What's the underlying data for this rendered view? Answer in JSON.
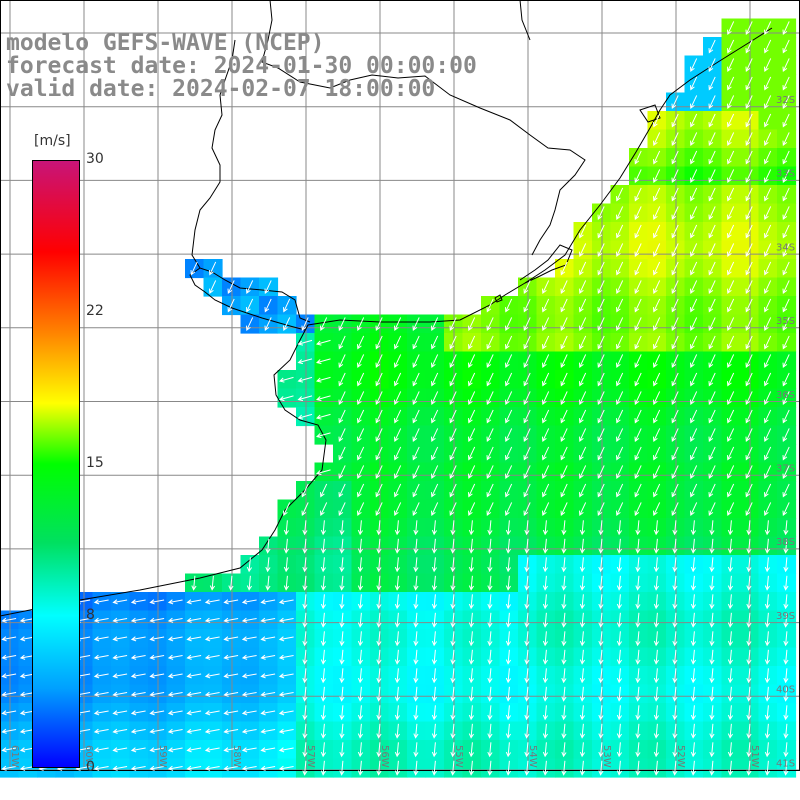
{
  "header": {
    "line1": "modelo GEFS-WAVE (NCEP)",
    "line2": "forecast date: 2024-01-30 00:00:00",
    "line3": "valid date: 2024-02-07 18:00:00"
  },
  "colorbar": {
    "unit": "[m/s]",
    "labels": [
      "30",
      "22",
      "15",
      "8",
      "0"
    ],
    "stops": [
      {
        "value": 0,
        "color": "#0000ff"
      },
      {
        "value": 8,
        "color": "#00ffff"
      },
      {
        "value": 15,
        "color": "#00ff00"
      },
      {
        "value": 22,
        "color": "#ff8000"
      },
      {
        "value": 30,
        "color": "#c81478"
      }
    ]
  },
  "lat_labels": [
    "32S",
    "33S",
    "34S",
    "35S",
    "36S",
    "37S",
    "38S",
    "39S",
    "40S",
    "41S"
  ],
  "lon_labels": [
    "61W",
    "60W",
    "59W",
    "58W",
    "57W",
    "56W",
    "55W",
    "54W",
    "53W",
    "52W",
    "51W"
  ],
  "field": {
    "variable": "wind speed",
    "wind_direction": "from north-east toward south-west"
  }
}
